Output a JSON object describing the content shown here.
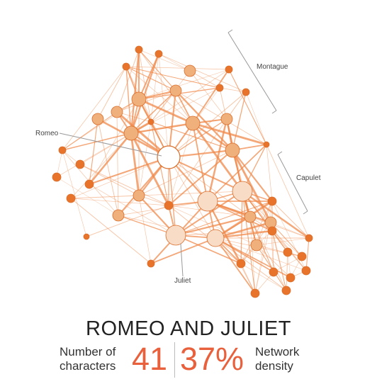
{
  "colors": {
    "edge": "#f08a4b",
    "node_fill_dark": "#e8742c",
    "node_fill_mid": "#f0b07c",
    "node_fill_light": "#f8dcc6",
    "node_fill_white": "#ffffff",
    "node_stroke": "#d96d2a",
    "number_color": "#e8603c",
    "bracket": "#999999"
  },
  "groups": {
    "montague": "Montague",
    "capulet": "Capulet"
  },
  "characters": {
    "romeo": "Romeo",
    "juliet": "Juliet"
  },
  "title": "ROMEO AND JULIET",
  "stats": {
    "characters_label_1": "Number of",
    "characters_label_2": "characters",
    "characters_value": "41",
    "density_value": "37%",
    "density_label_1": "Network",
    "density_label_2": "density"
  }
}
